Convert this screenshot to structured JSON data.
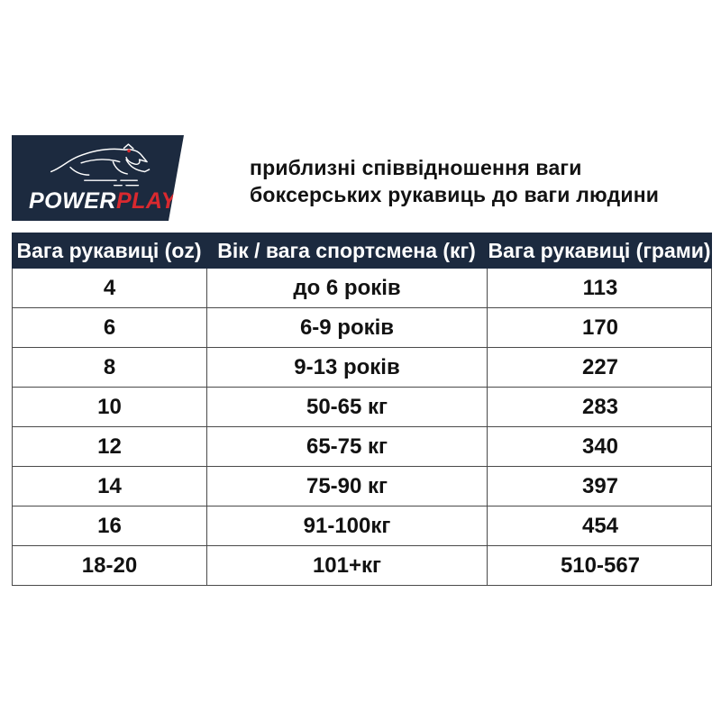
{
  "logo": {
    "power": "POWER",
    "play": "PLAY",
    "registered": "®",
    "colors": {
      "box": "#1c2a3f",
      "power_text": "#ffffff",
      "play_text": "#d9292f",
      "eye": "#d9292f"
    }
  },
  "title": {
    "line1": "приблизні співвідношення ваги",
    "line2": "боксерських рукавиць до ваги людини"
  },
  "chart_data": {
    "type": "table",
    "title": "приблизні співвідношення ваги боксерських рукавиць до ваги людини",
    "columns": [
      "Вага рукавиці (oz)",
      "Вік / вага спортсмена (кг)",
      "Вага рукавиці (грами)"
    ],
    "rows": [
      [
        "4",
        "до 6 років",
        "113"
      ],
      [
        "6",
        "6-9 років",
        "170"
      ],
      [
        "8",
        "9-13 років",
        "227"
      ],
      [
        "10",
        "50-65 кг",
        "283"
      ],
      [
        "12",
        "65-75 кг",
        "340"
      ],
      [
        "14",
        "75-90 кг",
        "397"
      ],
      [
        "16",
        "91-100кг",
        "454"
      ],
      [
        "18-20",
        "101+кг",
        "510-567"
      ]
    ],
    "layout": {
      "header_bg": "#1c2a3f",
      "header_text_color": "#ffffff",
      "border_color": "#4a4a4a",
      "body_text_color": "#121212",
      "grid": "on"
    }
  }
}
